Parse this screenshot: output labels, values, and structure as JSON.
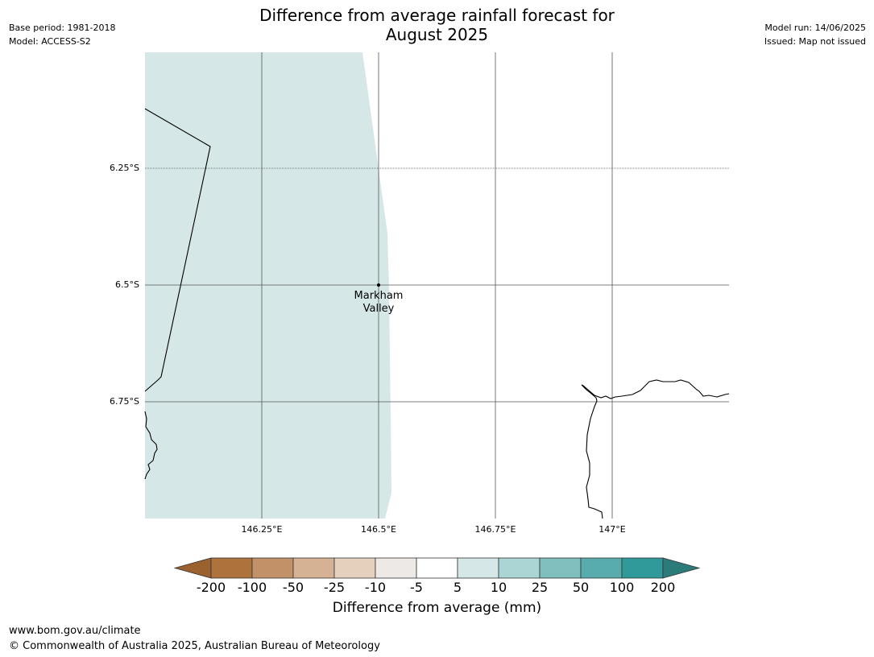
{
  "header": {
    "title_line1": "Difference from average rainfall forecast for",
    "title_line2": "August 2025",
    "base_period": "Base period: 1981-2018",
    "model": "Model: ACCESS-S2",
    "model_run": "Model run: 14/06/2025",
    "issued": "Issued: Map not issued"
  },
  "map": {
    "lat_labels": [
      "6.25°S",
      "6.5°S",
      "6.75°S"
    ],
    "lon_labels": [
      "146.25°E",
      "146.5°E",
      "146.75°E",
      "147°E"
    ],
    "place_line1": "Markham",
    "place_line2": "Valley",
    "forecast_fill_color": "#d5e8e7",
    "forecast_category": "5 to 10"
  },
  "legend": {
    "title": "Difference from average (mm)",
    "tick_labels": [
      "-200",
      "-100",
      "-50",
      "-25",
      "-10",
      "-5",
      "5",
      "10",
      "25",
      "50",
      "100",
      "200"
    ],
    "colors": [
      "#9b6230",
      "#ae733c",
      "#c29167",
      "#d5b293",
      "#e5d0bd",
      "#ece9e6",
      "#ffffff",
      "#d5e8e7",
      "#aad5d4",
      "#7fbfbd",
      "#58acad",
      "#2f9a99",
      "#2a7b7a"
    ]
  },
  "footer": {
    "url": "www.bom.gov.au/climate",
    "copyright": "© Commonwealth of Australia 2025, Australian Bureau of Meteorology"
  }
}
